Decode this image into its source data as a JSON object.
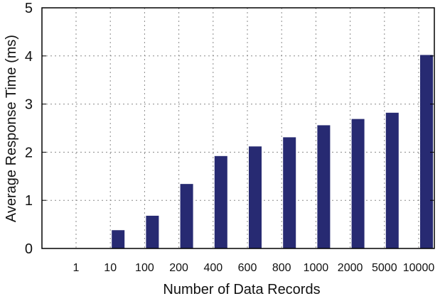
{
  "chart_data": {
    "type": "bar",
    "categories": [
      "1",
      "10",
      "100",
      "200",
      "400",
      "600",
      "800",
      "1000",
      "2000",
      "5000",
      "10000"
    ],
    "values": [
      0,
      0.38,
      0.68,
      1.34,
      1.92,
      2.12,
      2.31,
      2.56,
      2.69,
      2.82,
      4.02
    ],
    "title": "",
    "xlabel": "Number of Data Records",
    "ylabel": "Average Response Time (ms)",
    "ylim": [
      0,
      5
    ],
    "yticks": [
      0,
      1,
      2,
      3,
      4,
      5
    ],
    "grid": true,
    "legend": "none",
    "bar_color": "#272a72",
    "grid_color": "#8a8a8a"
  }
}
